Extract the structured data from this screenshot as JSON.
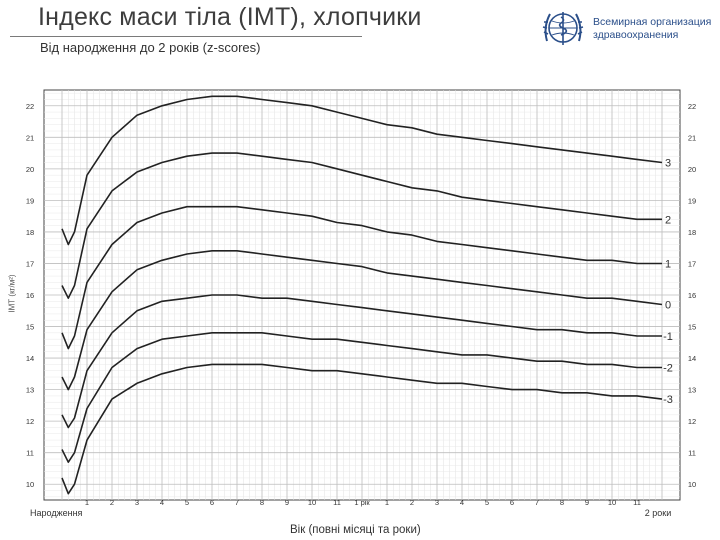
{
  "header": {
    "title": "Індекс маси тіла (ІМТ), хлопчики",
    "subtitle": "Від народження до 2 років (z-scores)",
    "org_name_line1": "Всемирная организация",
    "org_name_line2": "здравоохранения",
    "logo_icon": "who-emblem-icon",
    "brand_color": "#2b4f8a"
  },
  "chart_data": {
    "type": "line",
    "title": "Індекс маси тіла (ІМТ), хлопчики",
    "subtitle": "Від народження до 2 років (z-scores)",
    "xlabel": "Вік (повні місяці та роки)",
    "ylabel": "ІМТ (кг/м²)",
    "xlim": [
      0,
      24
    ],
    "ylim": [
      9.5,
      22.5
    ],
    "grid": true,
    "y_ticks": [
      10,
      11,
      12,
      13,
      14,
      15,
      16,
      17,
      18,
      19,
      20,
      21,
      22
    ],
    "x_ticks": [
      {
        "x": 0,
        "label": "Народження"
      },
      {
        "x": 1,
        "label": "1"
      },
      {
        "x": 2,
        "label": "2"
      },
      {
        "x": 3,
        "label": "3"
      },
      {
        "x": 4,
        "label": "4"
      },
      {
        "x": 5,
        "label": "5"
      },
      {
        "x": 6,
        "label": "6"
      },
      {
        "x": 7,
        "label": "7"
      },
      {
        "x": 8,
        "label": "8"
      },
      {
        "x": 9,
        "label": "9"
      },
      {
        "x": 10,
        "label": "10"
      },
      {
        "x": 11,
        "label": "11"
      },
      {
        "x": 12,
        "label": "1 рік"
      },
      {
        "x": 13,
        "label": "1"
      },
      {
        "x": 14,
        "label": "2"
      },
      {
        "x": 15,
        "label": "3"
      },
      {
        "x": 16,
        "label": "4"
      },
      {
        "x": 17,
        "label": "5"
      },
      {
        "x": 18,
        "label": "6"
      },
      {
        "x": 19,
        "label": "7"
      },
      {
        "x": 20,
        "label": "8"
      },
      {
        "x": 21,
        "label": "9"
      },
      {
        "x": 22,
        "label": "10"
      },
      {
        "x": 23,
        "label": "11"
      },
      {
        "x": 24,
        "label": "2 роки"
      }
    ],
    "x": [
      0,
      0.25,
      0.5,
      1,
      2,
      3,
      4,
      5,
      6,
      7,
      8,
      9,
      10,
      11,
      12,
      13,
      14,
      15,
      16,
      17,
      18,
      19,
      20,
      21,
      22,
      23,
      24
    ],
    "series": [
      {
        "name": "3",
        "values": [
          18.1,
          17.6,
          18.0,
          19.8,
          21.0,
          21.7,
          22.0,
          22.2,
          22.3,
          22.3,
          22.2,
          22.1,
          22.0,
          21.8,
          21.6,
          21.4,
          21.3,
          21.1,
          21.0,
          20.9,
          20.8,
          20.7,
          20.6,
          20.5,
          20.4,
          20.3,
          20.2
        ]
      },
      {
        "name": "2",
        "values": [
          16.3,
          15.9,
          16.3,
          18.1,
          19.3,
          19.9,
          20.2,
          20.4,
          20.5,
          20.5,
          20.4,
          20.3,
          20.2,
          20.0,
          19.8,
          19.6,
          19.4,
          19.3,
          19.1,
          19.0,
          18.9,
          18.8,
          18.7,
          18.6,
          18.5,
          18.4,
          18.4
        ]
      },
      {
        "name": "1",
        "values": [
          14.8,
          14.3,
          14.7,
          16.4,
          17.6,
          18.3,
          18.6,
          18.8,
          18.8,
          18.8,
          18.7,
          18.6,
          18.5,
          18.3,
          18.2,
          18.0,
          17.9,
          17.7,
          17.6,
          17.5,
          17.4,
          17.3,
          17.2,
          17.1,
          17.1,
          17.0,
          17.0
        ]
      },
      {
        "name": "0",
        "values": [
          13.4,
          13.0,
          13.4,
          14.9,
          16.1,
          16.8,
          17.1,
          17.3,
          17.4,
          17.4,
          17.3,
          17.2,
          17.1,
          17.0,
          16.9,
          16.7,
          16.6,
          16.5,
          16.4,
          16.3,
          16.2,
          16.1,
          16.0,
          15.9,
          15.9,
          15.8,
          15.7
        ]
      },
      {
        "name": "-1",
        "values": [
          12.2,
          11.8,
          12.1,
          13.6,
          14.8,
          15.5,
          15.8,
          15.9,
          16.0,
          16.0,
          15.9,
          15.9,
          15.8,
          15.7,
          15.6,
          15.5,
          15.4,
          15.3,
          15.2,
          15.1,
          15.0,
          14.9,
          14.9,
          14.8,
          14.8,
          14.7,
          14.7
        ]
      },
      {
        "name": "-2",
        "values": [
          11.1,
          10.7,
          11.0,
          12.4,
          13.7,
          14.3,
          14.6,
          14.7,
          14.8,
          14.8,
          14.8,
          14.7,
          14.6,
          14.6,
          14.5,
          14.4,
          14.3,
          14.2,
          14.1,
          14.1,
          14.0,
          13.9,
          13.9,
          13.8,
          13.8,
          13.7,
          13.7
        ]
      },
      {
        "name": "-3",
        "values": [
          10.2,
          9.7,
          10.0,
          11.4,
          12.7,
          13.2,
          13.5,
          13.7,
          13.8,
          13.8,
          13.8,
          13.7,
          13.6,
          13.6,
          13.5,
          13.4,
          13.3,
          13.2,
          13.2,
          13.1,
          13.0,
          13.0,
          12.9,
          12.9,
          12.8,
          12.8,
          12.7
        ]
      }
    ],
    "line_color": "#222222",
    "grid_color": "#bdbdbd"
  }
}
